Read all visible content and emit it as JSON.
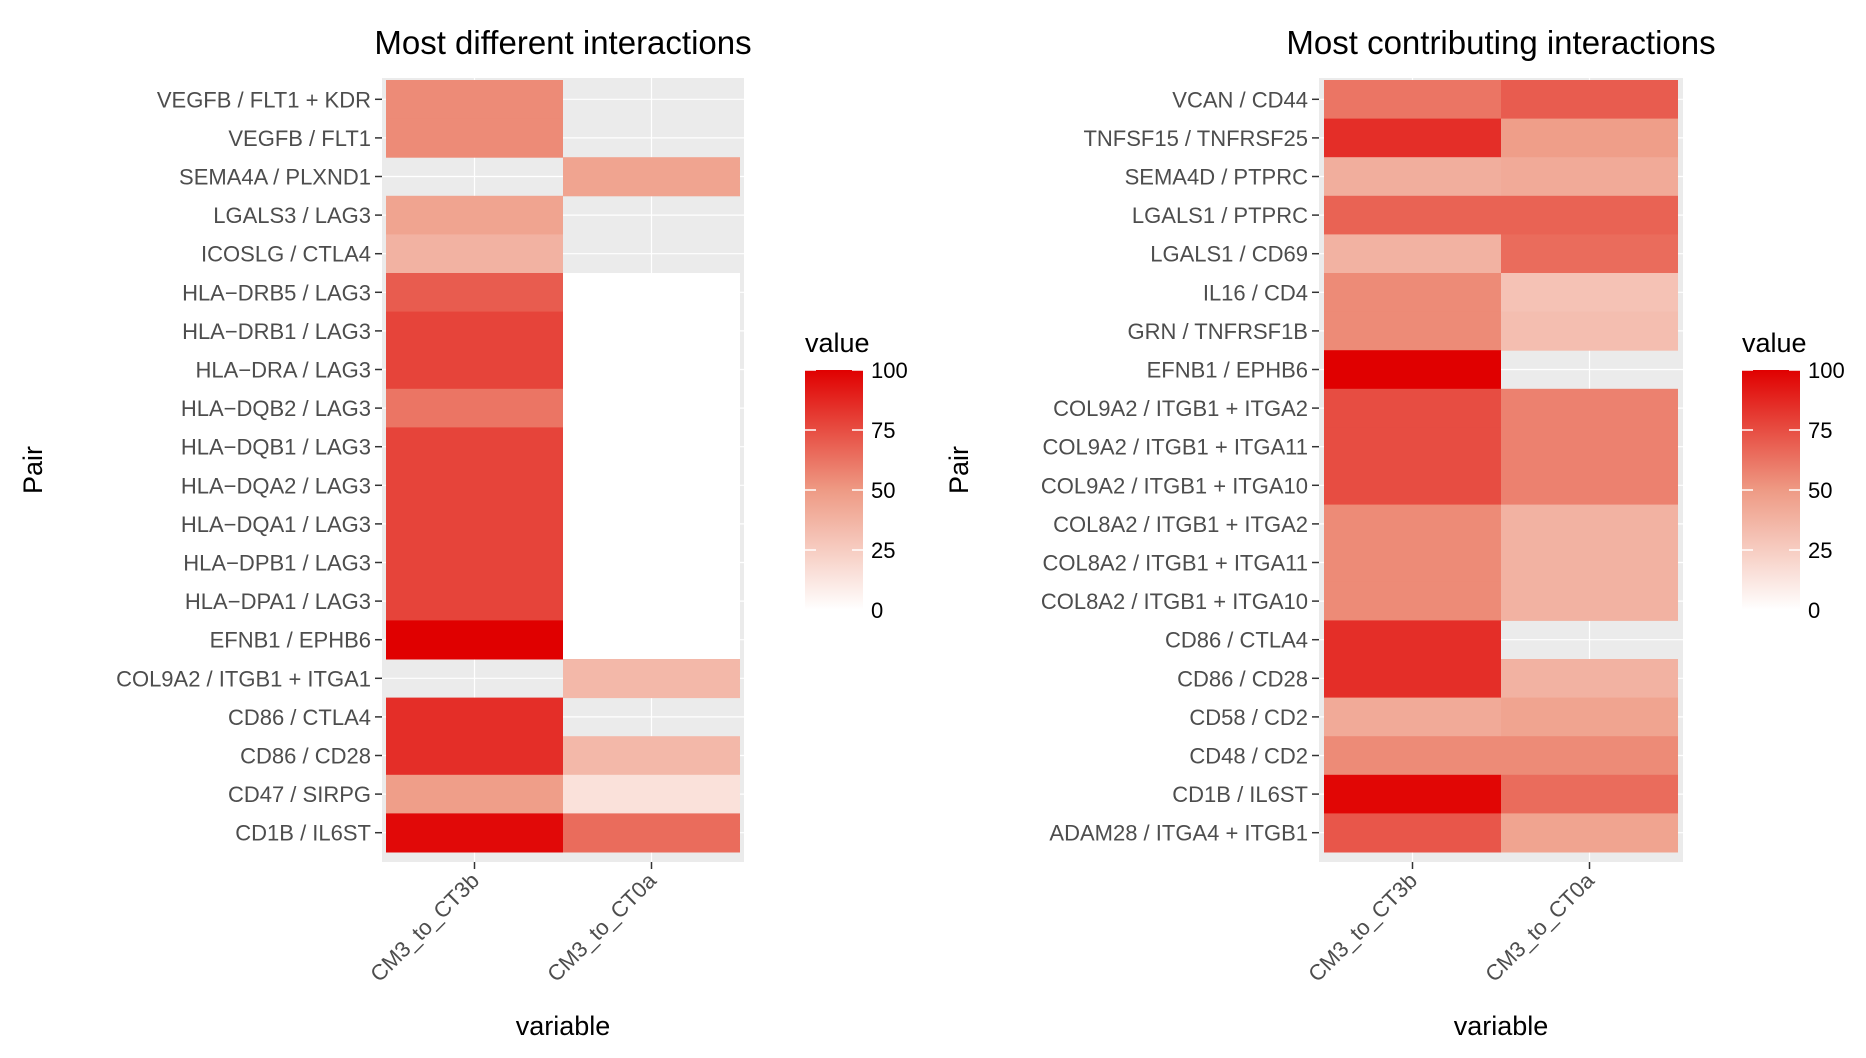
{
  "chart_data": [
    {
      "type": "heatmap",
      "title": "Most different interactions",
      "xlabel": "variable",
      "ylabel": "Pair",
      "legend_title": "value",
      "color_range": [
        0,
        100
      ],
      "color_low": "#ffffff",
      "color_high": "#e00000",
      "legend_breaks": [
        0,
        25,
        50,
        75,
        100
      ],
      "legend_position": "right",
      "grid": true,
      "x": [
        "CM3_to_CT3b",
        "CM3_to_CT0a"
      ],
      "y": [
        "VEGFB / FLT1 + KDR",
        "VEGFB / FLT1",
        "SEMA4A / PLXND1",
        "LGALS3 / LAG3",
        "ICOSLG / CTLA4",
        "HLA−DRB5 / LAG3",
        "HLA−DRB1 / LAG3",
        "HLA−DRA / LAG3",
        "HLA−DQB2 / LAG3",
        "HLA−DQB1 / LAG3",
        "HLA−DQA2 / LAG3",
        "HLA−DQA1 / LAG3",
        "HLA−DPB1 / LAG3",
        "HLA−DPA1 / LAG3",
        "EFNB1 / EPHB6",
        "COL9A2 / ITGB1 + ITGA1",
        "CD86 / CTLA4",
        "CD86 / CD28",
        "CD47 / SIRPG",
        "CD1B / IL6ST"
      ],
      "values": [
        [
          55,
          null
        ],
        [
          55,
          null
        ],
        [
          null,
          45
        ],
        [
          45,
          null
        ],
        [
          38,
          null
        ],
        [
          70,
          0
        ],
        [
          78,
          0
        ],
        [
          78,
          0
        ],
        [
          62,
          0
        ],
        [
          78,
          0
        ],
        [
          78,
          0
        ],
        [
          78,
          0
        ],
        [
          78,
          0
        ],
        [
          78,
          0
        ],
        [
          100,
          0
        ],
        [
          null,
          35
        ],
        [
          85,
          null
        ],
        [
          85,
          35
        ],
        [
          48,
          15
        ],
        [
          97,
          65
        ]
      ]
    },
    {
      "type": "heatmap",
      "title": "Most contributing interactions",
      "xlabel": "variable",
      "ylabel": "Pair",
      "legend_title": "value",
      "color_range": [
        0,
        100
      ],
      "color_low": "#ffffff",
      "color_high": "#e00000",
      "legend_breaks": [
        0,
        25,
        50,
        75,
        100
      ],
      "legend_position": "right",
      "grid": true,
      "x": [
        "CM3_to_CT3b",
        "CM3_to_CT0a"
      ],
      "y": [
        "VCAN / CD44",
        "TNFSF15 / TNFRSF25",
        "SEMA4D / PTPRC",
        "LGALS1 / PTPRC",
        "LGALS1 / CD69",
        "IL16 / CD4",
        "GRN / TNFRSF1B",
        "EFNB1 / EPHB6",
        "COL9A2 / ITGB1 + ITGA2",
        "COL9A2 / ITGB1 + ITGA11",
        "COL9A2 / ITGB1 + ITGA10",
        "COL8A2 / ITGB1 + ITGA2",
        "COL8A2 / ITGB1 + ITGA11",
        "COL8A2 / ITGB1 + ITGA10",
        "CD86 / CTLA4",
        "CD86 / CD28",
        "CD58 / CD2",
        "CD48 / CD2",
        "CD1B / IL6ST",
        "ADAM28 / ITGA4 + ITGB1"
      ],
      "values": [
        [
          62,
          70
        ],
        [
          85,
          48
        ],
        [
          40,
          42
        ],
        [
          68,
          68
        ],
        [
          38,
          65
        ],
        [
          55,
          30
        ],
        [
          55,
          32
        ],
        [
          100,
          null
        ],
        [
          75,
          58
        ],
        [
          75,
          58
        ],
        [
          75,
          58
        ],
        [
          55,
          38
        ],
        [
          55,
          38
        ],
        [
          55,
          38
        ],
        [
          85,
          null
        ],
        [
          85,
          38
        ],
        [
          42,
          45
        ],
        [
          55,
          55
        ],
        [
          98,
          65
        ],
        [
          72,
          45
        ]
      ]
    }
  ]
}
